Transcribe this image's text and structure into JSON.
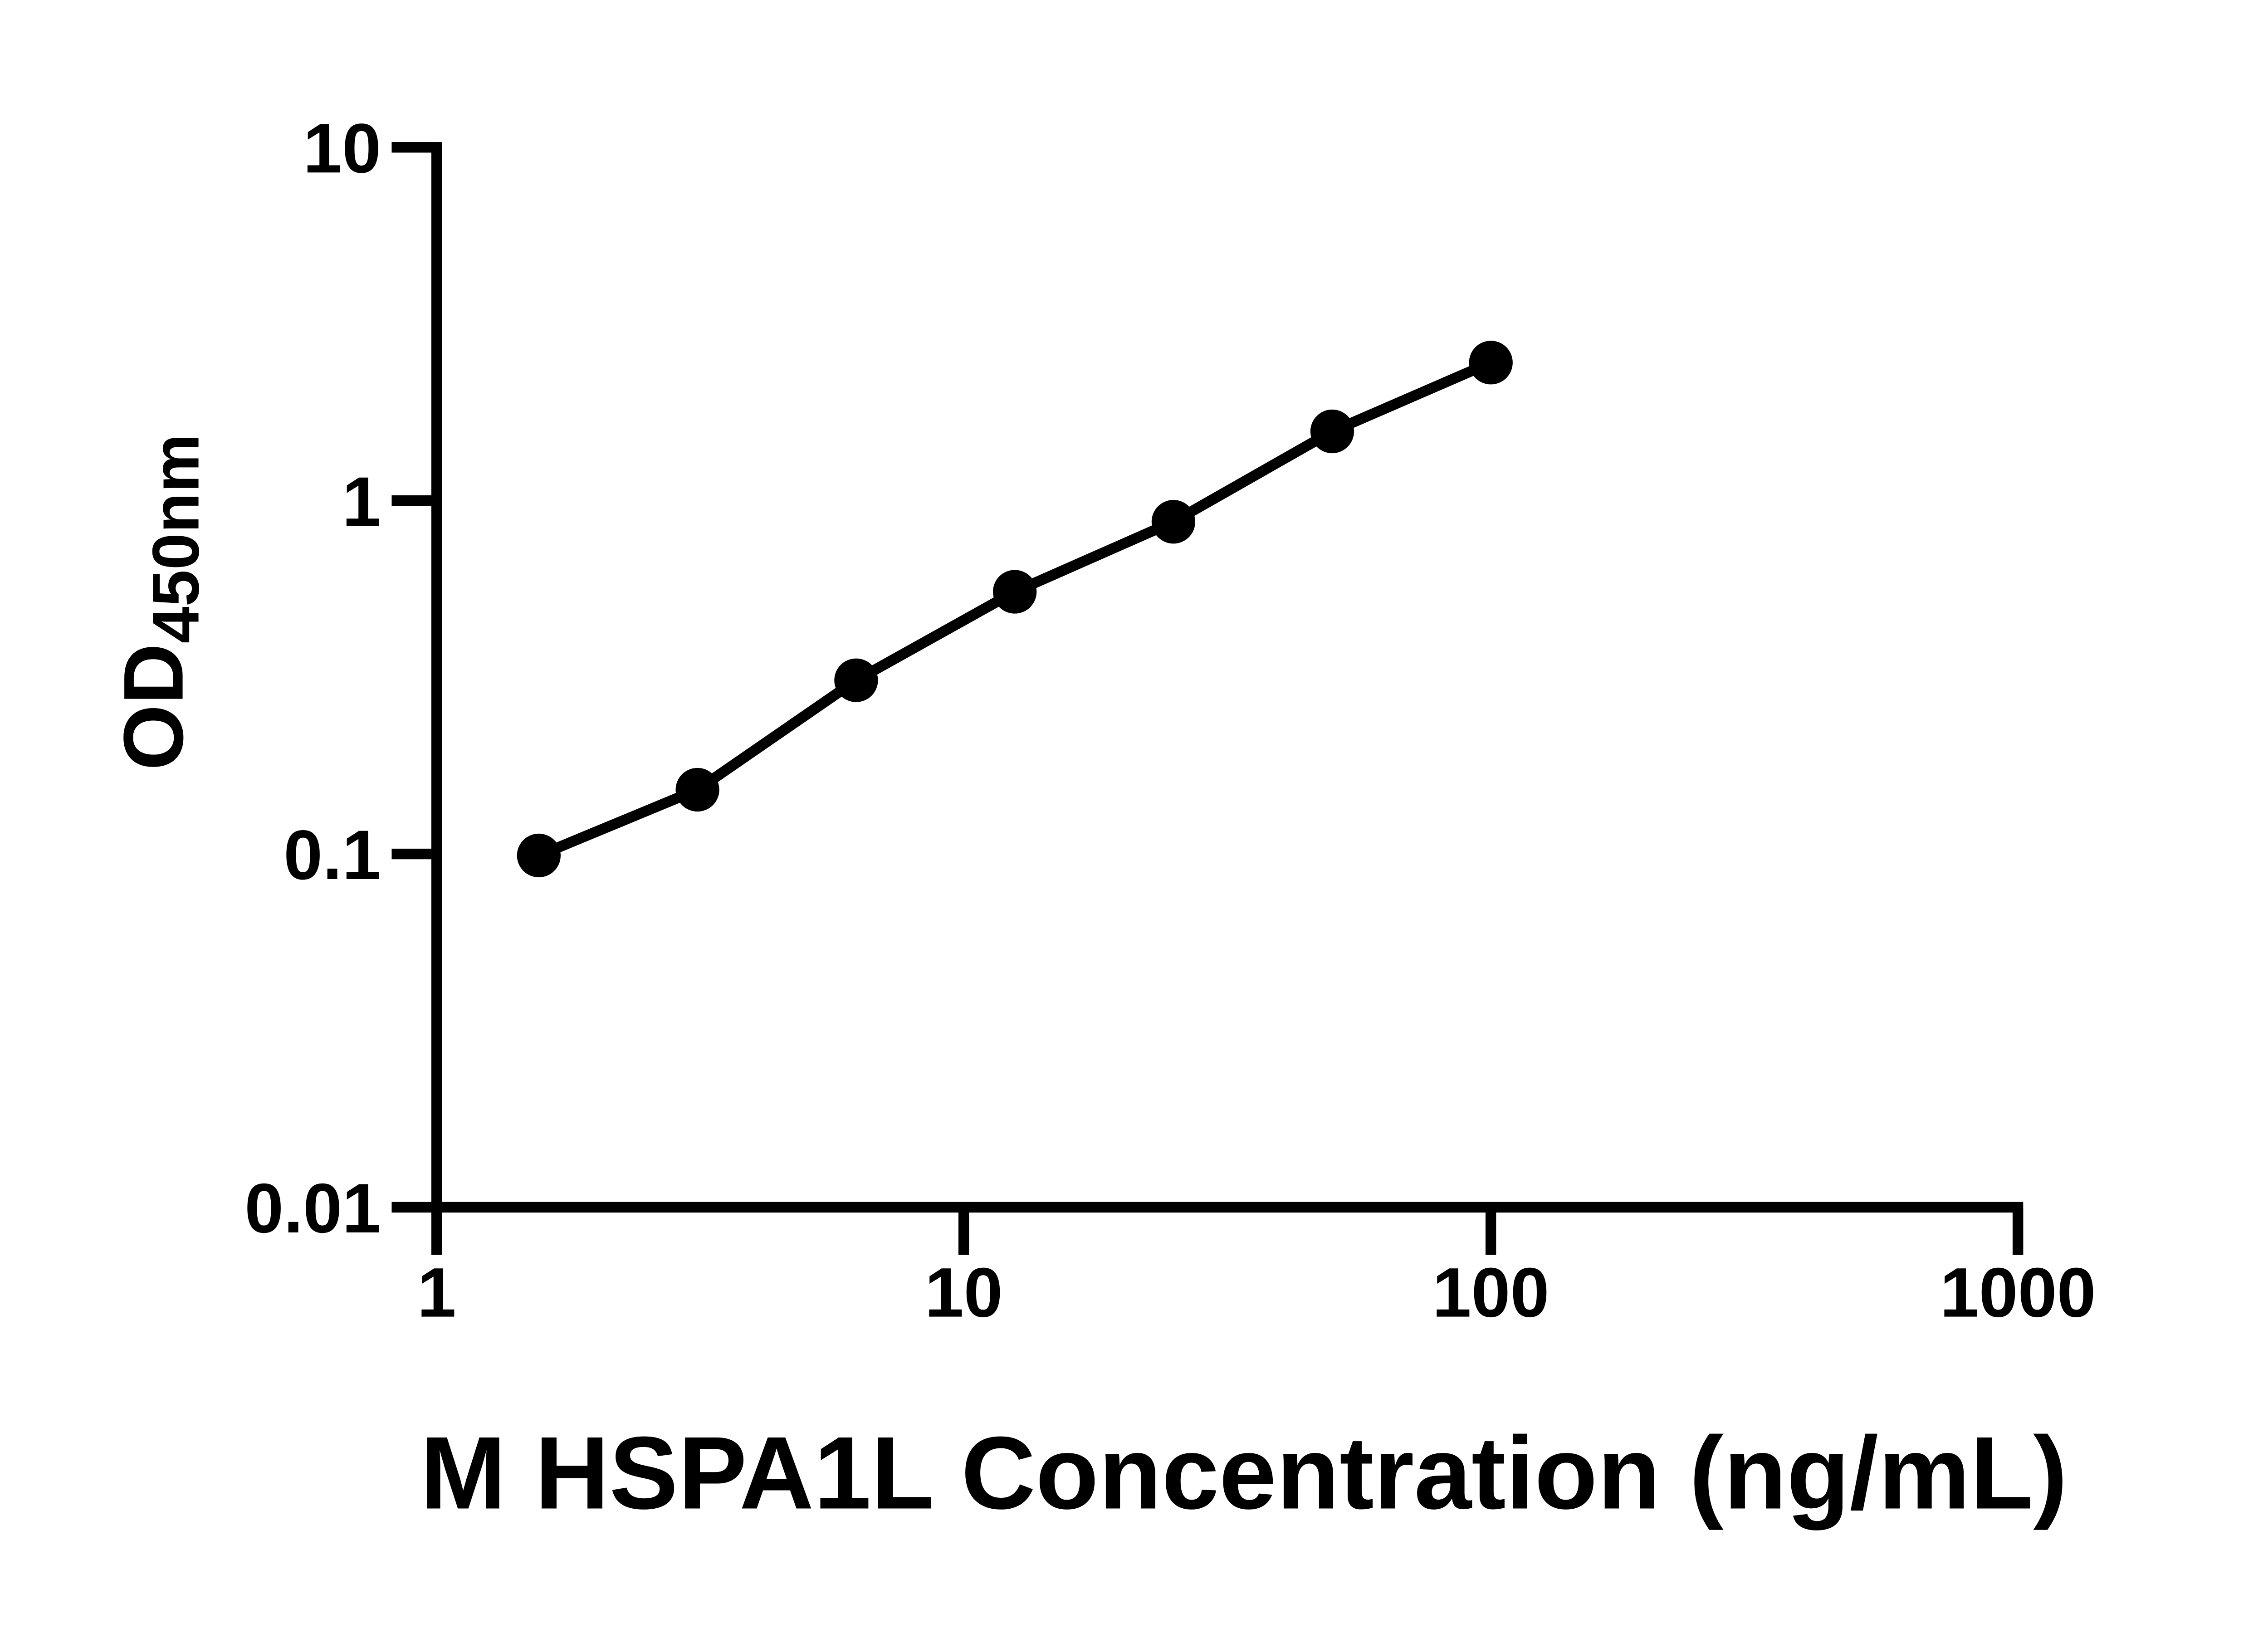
{
  "figure": {
    "background_color": "#ffffff",
    "foreground_color": "#000000"
  },
  "chart_data": {
    "type": "scatter",
    "x": [
      1.5625,
      3.125,
      6.25,
      12.5,
      25,
      50,
      100
    ],
    "y": [
      0.099,
      0.152,
      0.31,
      0.552,
      0.871,
      1.571,
      2.458
    ],
    "title": "",
    "xlabel": "M HSPA1L Concentration (ng/mL)",
    "ylabel_main": "OD",
    "ylabel_sub": "450nm",
    "x_scale": "log10",
    "y_scale": "log10",
    "xlim": [
      1,
      1000
    ],
    "ylim": [
      0.01,
      10
    ],
    "x_ticks": [
      {
        "value": 1,
        "label": "1"
      },
      {
        "value": 10,
        "label": "10"
      },
      {
        "value": 100,
        "label": "100"
      },
      {
        "value": 1000,
        "label": "1000"
      }
    ],
    "y_ticks": [
      {
        "value": 10,
        "label": "10"
      },
      {
        "value": 1,
        "label": "1"
      },
      {
        "value": 0.1,
        "label": "0.1"
      },
      {
        "value": 0.01,
        "label": "0.01"
      }
    ],
    "grid": false,
    "legend": "none",
    "marker_color": "#000000",
    "line_color": "#000000"
  }
}
